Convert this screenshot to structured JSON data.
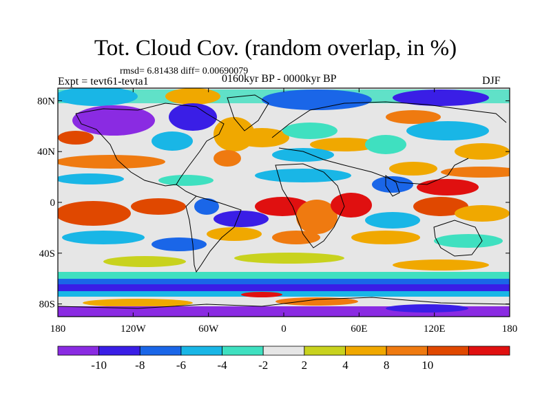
{
  "header": {
    "title": "Tot. Cloud Cov. (random overlap, in %)",
    "stats": "rmsd= 6.81438 diff= 0.00690079",
    "experiment": "Expt = tevt61-tevta1",
    "period": "0160kyr BP - 0000kyr BP",
    "season": "DJF"
  },
  "map": {
    "lat_ticks": [
      {
        "label": "80N",
        "value": 80
      },
      {
        "label": "40N",
        "value": 40
      },
      {
        "label": "0",
        "value": 0
      },
      {
        "label": "40S",
        "value": -40
      },
      {
        "label": "80S",
        "value": -80
      }
    ],
    "lon_ticks": [
      {
        "label": "180",
        "value": -180
      },
      {
        "label": "120W",
        "value": -120
      },
      {
        "label": "60W",
        "value": -60
      },
      {
        "label": "0",
        "value": 0
      },
      {
        "label": "60E",
        "value": 60
      },
      {
        "label": "120E",
        "value": 120
      },
      {
        "label": "180",
        "value": 180
      }
    ],
    "lat_range": [
      -90,
      90
    ],
    "lon_range": [
      -180,
      180
    ]
  },
  "colorbar": {
    "colors": [
      "#8a2be2",
      "#3a1ee6",
      "#1a66e8",
      "#19b6e6",
      "#3fe0c0",
      "#e6e6e6",
      "#c8d21e",
      "#f0a800",
      "#ef7a10",
      "#e04800",
      "#e01010"
    ],
    "labels": [
      "-10",
      "-8",
      "-6",
      "-4",
      "-2",
      "2",
      "4",
      "8",
      "10"
    ]
  }
}
